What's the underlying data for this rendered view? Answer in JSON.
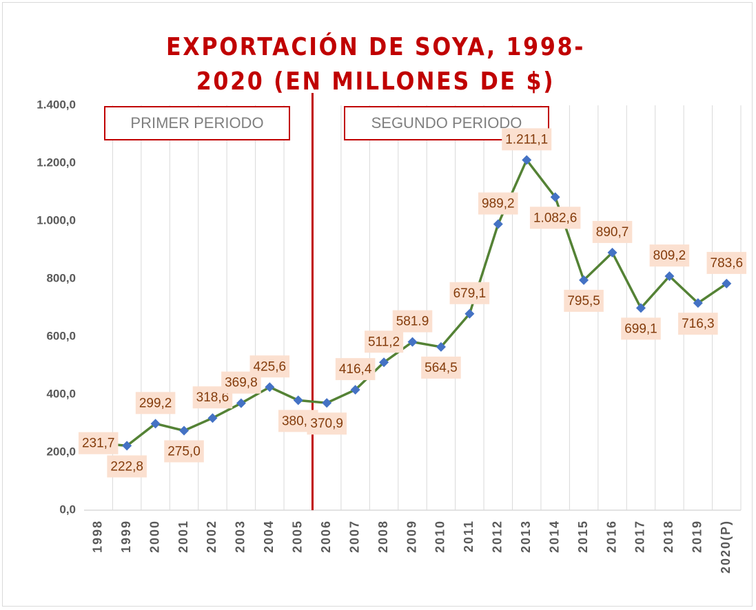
{
  "chart_data": {
    "type": "line",
    "title": "EXPORTACIÓN DE SOYA, 1998-2020 (EN MILLONES DE $)",
    "categories": [
      "1998",
      "1999",
      "2000",
      "2001",
      "2002",
      "2003",
      "2004",
      "2005",
      "2006",
      "2007",
      "2008",
      "2009",
      "2010",
      "2011",
      "2012",
      "2013",
      "2014",
      "2015",
      "2016",
      "2017",
      "2018",
      "2019",
      "2020(P)"
    ],
    "series": [
      {
        "name": "Exportación de soya",
        "color": "#548235",
        "marker_color": "#4472c4",
        "values": [
          231.7,
          222.8,
          299.2,
          275.0,
          318.6,
          369.8,
          425.6,
          380.0,
          370.9,
          416.4,
          511.2,
          581.9,
          564.5,
          679.1,
          989.2,
          1211.1,
          1082.6,
          795.5,
          890.7,
          699.1,
          809.2,
          716.3,
          783.6
        ],
        "value_labels": [
          "231,7",
          "222,8",
          "299,2",
          "275,0",
          "318,6",
          "369,8",
          "425,6",
          "380,0",
          "370,9",
          "416,4",
          "511,2",
          "581.9",
          "564,5",
          "679,1",
          "989,2",
          "1.211,1",
          "1.082,6",
          "795,5",
          "890,7",
          "699,1",
          "809,2",
          "716,3",
          "783,6"
        ]
      }
    ],
    "ylim": [
      0,
      1400
    ],
    "yticks": [
      {
        "value": 0,
        "label": "0,0"
      },
      {
        "value": 200,
        "label": "200,0"
      },
      {
        "value": 400,
        "label": "400,0"
      },
      {
        "value": 600,
        "label": "600,0"
      },
      {
        "value": 800,
        "label": "800,0"
      },
      {
        "value": 1000,
        "label": "1.000,0"
      },
      {
        "value": 1200,
        "label": "1.200,0"
      },
      {
        "value": 1400,
        "label": "1.400,0"
      }
    ],
    "grid": "x",
    "annotations": [
      "PRIMER PERIODO",
      "SEGUNDO PERIODO"
    ]
  }
}
